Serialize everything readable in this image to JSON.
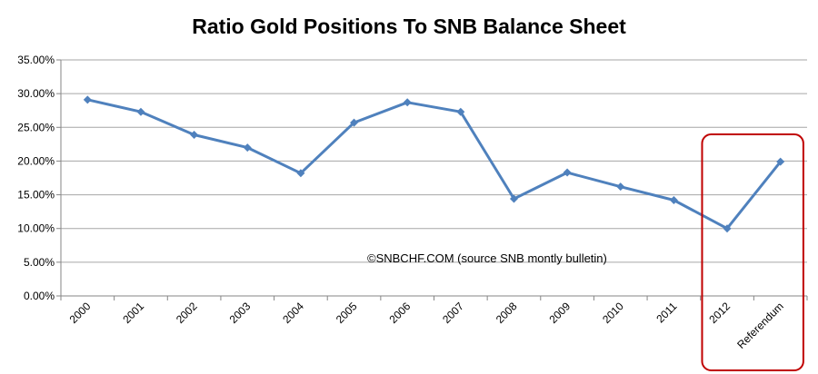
{
  "chart_data": {
    "type": "line",
    "title": "Ratio Gold Positions To SNB Balance Sheet",
    "xlabel": "",
    "ylabel": "",
    "categories": [
      "2000",
      "2001",
      "2002",
      "2003",
      "2004",
      "2005",
      "2006",
      "2007",
      "2008",
      "2009",
      "2010",
      "2011",
      "2012",
      "Referendum"
    ],
    "series": [
      {
        "values": [
          29.1,
          27.3,
          23.9,
          22.0,
          18.2,
          25.7,
          28.7,
          27.3,
          14.4,
          18.3,
          16.2,
          14.2,
          10.0,
          19.9
        ]
      }
    ],
    "ylim": [
      0,
      35
    ],
    "yticks": [
      "0.00%",
      "5.00%",
      "10.00%",
      "15.00%",
      "20.00%",
      "25.00%",
      "30.00%",
      "35.00%"
    ],
    "grid": true,
    "legend": "none",
    "annotation": "©SNBCHF.COM (source SNB montly bulletin)",
    "highlight_categories": [
      "2012",
      "Referendum"
    ],
    "colors": {
      "line": "#4f81bd",
      "grid": "#a6a6a6",
      "highlight_box": "#c00000"
    }
  }
}
